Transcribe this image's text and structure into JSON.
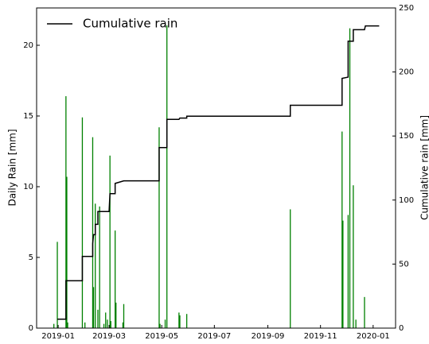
{
  "chart_data": {
    "type": "bar",
    "x": [
      -5,
      -1,
      9,
      10,
      11,
      28,
      31,
      40,
      41,
      43,
      46,
      48,
      53,
      55,
      57,
      60,
      61,
      66,
      67,
      75,
      76,
      117,
      118,
      124,
      126,
      140,
      141,
      149,
      269,
      329,
      330,
      336,
      338,
      342,
      345,
      355
    ],
    "values": [
      0.3,
      6.1,
      16.4,
      10.7,
      0.4,
      14.9,
      0.4,
      13.5,
      2.9,
      8.8,
      1.3,
      8.6,
      0.3,
      1.1,
      0.6,
      12.2,
      0.5,
      6.9,
      1.8,
      0.4,
      1.7,
      14.2,
      0.3,
      0.6,
      21.4,
      1.1,
      0.9,
      1.0,
      8.4,
      13.9,
      7.6,
      8.0,
      21.2,
      10.1,
      0.6,
      2.2
    ],
    "color": "green",
    "ylabel": "Daily Rain [mm]",
    "y2label": "Cumulative rain [mm]",
    "xlim": [
      -25,
      391
    ],
    "xticks": [
      {
        "value": 0,
        "label": "2019-01"
      },
      {
        "value": 59,
        "label": "2019-03"
      },
      {
        "value": 120,
        "label": "2019-05"
      },
      {
        "value": 181,
        "label": "2019-07"
      },
      {
        "value": 243,
        "label": "2019-09"
      },
      {
        "value": 304,
        "label": "2019-11"
      },
      {
        "value": 365,
        "label": "2020-01"
      }
    ],
    "ylim": [
      0,
      22.64
    ],
    "yticks": [
      0,
      5,
      10,
      15,
      20
    ],
    "y2lim": [
      0,
      250
    ],
    "y2ticks": [
      0,
      50,
      100,
      150,
      200,
      250
    ],
    "legend": "upper left",
    "series": [
      {
        "name": "Cumulative rain",
        "type": "line",
        "color": "black",
        "axis": "y2",
        "x": [
          -1,
          9,
          9,
          28,
          28,
          40,
          40,
          41,
          43,
          43,
          46,
          46,
          59,
          60,
          66,
          66,
          76,
          117,
          117,
          126,
          126,
          140,
          141,
          149,
          149,
          269,
          269,
          329,
          329,
          336,
          336,
          342,
          342,
          355,
          356,
          372
        ],
        "values": [
          7,
          7,
          37,
          37,
          56,
          56,
          66,
          73,
          73,
          81,
          81,
          91,
          91,
          105,
          105,
          113,
          115,
          115,
          141,
          141,
          163,
          163,
          164,
          164,
          165.5,
          165.5,
          174,
          174,
          195,
          196,
          224,
          224,
          233,
          233,
          236,
          236
        ]
      }
    ]
  }
}
